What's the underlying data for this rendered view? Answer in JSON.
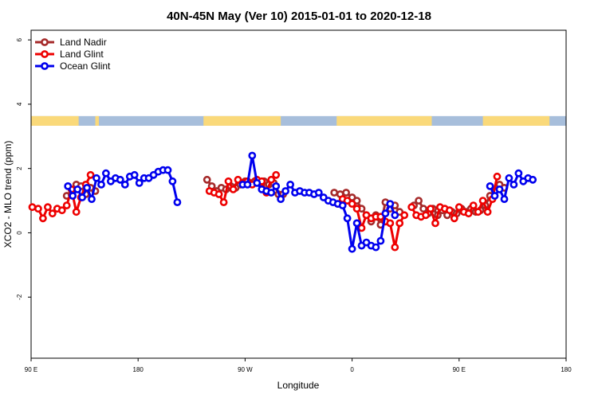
{
  "chart_data": {
    "type": "line",
    "title": "40N-45N May (Ver 10)   2015-01-01 to 2020-12-18",
    "xlabel": "Longitude",
    "ylabel": "XCO2 - MLO trend (ppm)",
    "x_ticks": [
      {
        "value": 90,
        "label": "90 E"
      },
      {
        "value": 180,
        "label": "180"
      },
      {
        "value": 270,
        "label": "90 W"
      },
      {
        "value": 360,
        "label": "0"
      },
      {
        "value": 450,
        "label": "90 E"
      },
      {
        "value": 540,
        "label": "180"
      }
    ],
    "y_ticks": [
      -2,
      0,
      2,
      4,
      6
    ],
    "xlim": [
      90,
      540
    ],
    "ylim": [
      -3.9,
      6.3
    ],
    "legend_position": "top-left",
    "land_strip": {
      "y_range": [
        3.33,
        3.63
      ],
      "ocean_color": "#a7bedb",
      "land_color": "#fad97a",
      "land_segments": [
        [
          90,
          130
        ],
        [
          144,
          147
        ],
        [
          235,
          300
        ],
        [
          347,
          427
        ],
        [
          470,
          526
        ]
      ]
    },
    "series": [
      {
        "name": "Land Nadir",
        "color": "#a52a2a",
        "segments": [
          [
            [
              120,
              1.15
            ],
            [
              124,
              1.2
            ],
            [
              128,
              1.5
            ],
            [
              132,
              1.45
            ],
            [
              136,
              1.2
            ],
            [
              140,
              1.4
            ],
            [
              144,
              1.3
            ]
          ],
          [
            [
              238,
              1.65
            ],
            [
              242,
              1.45
            ],
            [
              246,
              1.3
            ],
            [
              250,
              1.4
            ],
            [
              254,
              1.35
            ],
            [
              258,
              1.45
            ],
            [
              262,
              1.4
            ],
            [
              266,
              1.5
            ],
            [
              270,
              1.6
            ],
            [
              274,
              1.55
            ],
            [
              278,
              1.6
            ],
            [
              282,
              1.55
            ],
            [
              286,
              1.6
            ],
            [
              290,
              1.5
            ],
            [
              294,
              1.55
            ],
            [
              298,
              1.2
            ],
            [
              302,
              1.2
            ]
          ],
          [
            [
              345,
              1.25
            ],
            [
              350,
              1.2
            ],
            [
              355,
              1.25
            ],
            [
              360,
              1.1
            ],
            [
              364,
              1.0
            ],
            [
              368,
              0.75
            ],
            [
              372,
              0.55
            ],
            [
              376,
              0.35
            ],
            [
              380,
              0.55
            ],
            [
              384,
              0.25
            ],
            [
              388,
              0.95
            ],
            [
              392,
              0.75
            ],
            [
              396,
              0.85
            ],
            [
              400,
              0.65
            ]
          ],
          [
            [
              412,
              0.85
            ],
            [
              416,
              1.0
            ],
            [
              420,
              0.75
            ],
            [
              424,
              0.6
            ],
            [
              428,
              0.75
            ],
            [
              432,
              0.55
            ],
            [
              436,
              0.7
            ],
            [
              440,
              0.55
            ],
            [
              444,
              0.65
            ],
            [
              448,
              0.6
            ],
            [
              452,
              0.75
            ],
            [
              456,
              0.65
            ],
            [
              460,
              0.75
            ],
            [
              464,
              0.65
            ],
            [
              468,
              0.7
            ],
            [
              472,
              0.85
            ],
            [
              476,
              1.15
            ],
            [
              480,
              1.3
            ],
            [
              484,
              1.5
            ],
            [
              488,
              1.4
            ]
          ]
        ]
      },
      {
        "name": "Land Glint",
        "color": "#ee0000",
        "segments": [
          [
            [
              91,
              0.8
            ],
            [
              96,
              0.75
            ],
            [
              100,
              0.45
            ],
            [
              104,
              0.8
            ],
            [
              108,
              0.6
            ],
            [
              112,
              0.75
            ],
            [
              116,
              0.7
            ],
            [
              120,
              0.85
            ],
            [
              124,
              1.35
            ],
            [
              128,
              0.65
            ],
            [
              132,
              1.1
            ],
            [
              136,
              1.5
            ],
            [
              140,
              1.8
            ]
          ],
          [
            [
              240,
              1.3
            ],
            [
              244,
              1.25
            ],
            [
              248,
              1.2
            ],
            [
              252,
              0.95
            ],
            [
              256,
              1.6
            ],
            [
              260,
              1.35
            ],
            [
              264,
              1.65
            ],
            [
              268,
              1.55
            ],
            [
              272,
              1.6
            ],
            [
              276,
              1.5
            ],
            [
              280,
              1.65
            ],
            [
              284,
              1.6
            ],
            [
              288,
              1.25
            ],
            [
              292,
              1.65
            ],
            [
              296,
              1.8
            ]
          ],
          [
            [
              348,
              0.9
            ],
            [
              352,
              1.05
            ],
            [
              356,
              1.0
            ],
            [
              360,
              0.9
            ],
            [
              364,
              0.75
            ],
            [
              368,
              0.15
            ],
            [
              372,
              0.55
            ],
            [
              376,
              0.45
            ],
            [
              380,
              0.5
            ],
            [
              384,
              0.5
            ],
            [
              388,
              0.35
            ],
            [
              392,
              0.3
            ],
            [
              396,
              -0.45
            ],
            [
              400,
              0.3
            ],
            [
              404,
              0.55
            ]
          ],
          [
            [
              410,
              0.8
            ],
            [
              414,
              0.55
            ],
            [
              418,
              0.5
            ],
            [
              422,
              0.55
            ],
            [
              426,
              0.75
            ],
            [
              430,
              0.3
            ],
            [
              434,
              0.8
            ],
            [
              438,
              0.75
            ],
            [
              442,
              0.7
            ],
            [
              446,
              0.45
            ],
            [
              450,
              0.8
            ],
            [
              454,
              0.65
            ],
            [
              458,
              0.6
            ],
            [
              462,
              0.85
            ],
            [
              466,
              0.65
            ],
            [
              470,
              1.0
            ],
            [
              474,
              0.65
            ],
            [
              478,
              1.05
            ],
            [
              482,
              1.75
            ]
          ]
        ]
      },
      {
        "name": "Ocean Glint",
        "color": "#0000ee",
        "segments": [
          [
            [
              121,
              1.45
            ],
            [
              125,
              1.15
            ],
            [
              129,
              1.35
            ],
            [
              133,
              1.1
            ],
            [
              137,
              1.4
            ],
            [
              141,
              1.05
            ],
            [
              145,
              1.7
            ],
            [
              149,
              1.5
            ],
            [
              153,
              1.85
            ],
            [
              157,
              1.6
            ],
            [
              161,
              1.7
            ],
            [
              165,
              1.65
            ],
            [
              169,
              1.5
            ],
            [
              173,
              1.75
            ],
            [
              177,
              1.8
            ],
            [
              181,
              1.55
            ],
            [
              185,
              1.7
            ],
            [
              189,
              1.7
            ],
            [
              193,
              1.8
            ],
            [
              197,
              1.9
            ],
            [
              201,
              1.95
            ],
            [
              205,
              1.95
            ],
            [
              209,
              1.6
            ],
            [
              213,
              0.95
            ]
          ],
          [
            [
              268,
              1.5
            ],
            [
              272,
              1.5
            ],
            [
              276,
              2.4
            ],
            [
              280,
              1.55
            ],
            [
              284,
              1.35
            ],
            [
              288,
              1.3
            ],
            [
              292,
              1.25
            ],
            [
              296,
              1.45
            ],
            [
              300,
              1.05
            ],
            [
              304,
              1.3
            ],
            [
              308,
              1.5
            ],
            [
              312,
              1.25
            ],
            [
              316,
              1.3
            ],
            [
              320,
              1.25
            ],
            [
              324,
              1.25
            ],
            [
              328,
              1.2
            ],
            [
              332,
              1.25
            ],
            [
              336,
              1.1
            ],
            [
              340,
              1.0
            ],
            [
              344,
              0.95
            ],
            [
              348,
              0.9
            ],
            [
              352,
              0.85
            ],
            [
              356,
              0.45
            ],
            [
              360,
              -0.5
            ],
            [
              364,
              0.3
            ],
            [
              368,
              -0.4
            ],
            [
              372,
              -0.3
            ],
            [
              376,
              -0.4
            ],
            [
              380,
              -0.45
            ],
            [
              384,
              -0.25
            ],
            [
              388,
              0.6
            ],
            [
              392,
              0.9
            ],
            [
              396,
              0.55
            ]
          ],
          [
            [
              476,
              1.45
            ],
            [
              480,
              1.15
            ],
            [
              484,
              1.35
            ],
            [
              488,
              1.05
            ],
            [
              492,
              1.7
            ],
            [
              496,
              1.5
            ],
            [
              500,
              1.85
            ],
            [
              504,
              1.6
            ],
            [
              508,
              1.7
            ],
            [
              512,
              1.65
            ]
          ]
        ]
      }
    ]
  }
}
